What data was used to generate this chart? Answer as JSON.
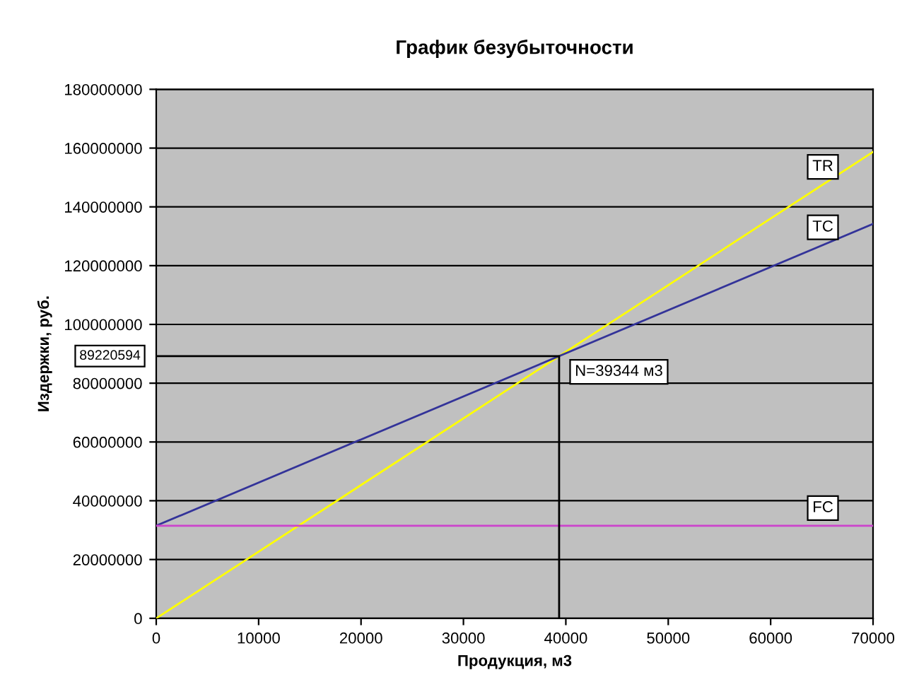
{
  "chart_data": {
    "type": "line",
    "title": "График безубыточности",
    "xlabel": "Продукция, м3",
    "ylabel": "Издержки, руб.",
    "series": [
      {
        "name": "TR",
        "color": "#ffff00",
        "x": [
          0,
          70000
        ],
        "values": [
          0,
          158700000
        ]
      },
      {
        "name": "TC",
        "color": "#333399",
        "x": [
          0,
          70000
        ],
        "values": [
          31500000,
          134200000
        ]
      },
      {
        "name": "FC",
        "color": "#cc44cc",
        "x": [
          0,
          70000
        ],
        "values": [
          31500000,
          31500000
        ]
      },
      {
        "color": "#000000",
        "x": [
          0,
          39344,
          39344
        ],
        "values": [
          89220594,
          89220594,
          0
        ]
      }
    ],
    "annotations": [
      {
        "text": "89220594",
        "x": 0,
        "y": 89220594
      },
      {
        "text": "N=39344 м3",
        "x": 39344,
        "y": 89220594
      }
    ],
    "xlim": [
      0,
      70000
    ],
    "xticks": [
      0,
      10000,
      20000,
      30000,
      40000,
      50000,
      60000,
      70000
    ],
    "ylim": [
      0,
      180000000
    ],
    "yticks": [
      0,
      20000000,
      40000000,
      60000000,
      80000000,
      100000000,
      120000000,
      140000000,
      160000000,
      180000000
    ],
    "grid": "y",
    "legend": false,
    "marker": "none",
    "line_style": "solid"
  }
}
